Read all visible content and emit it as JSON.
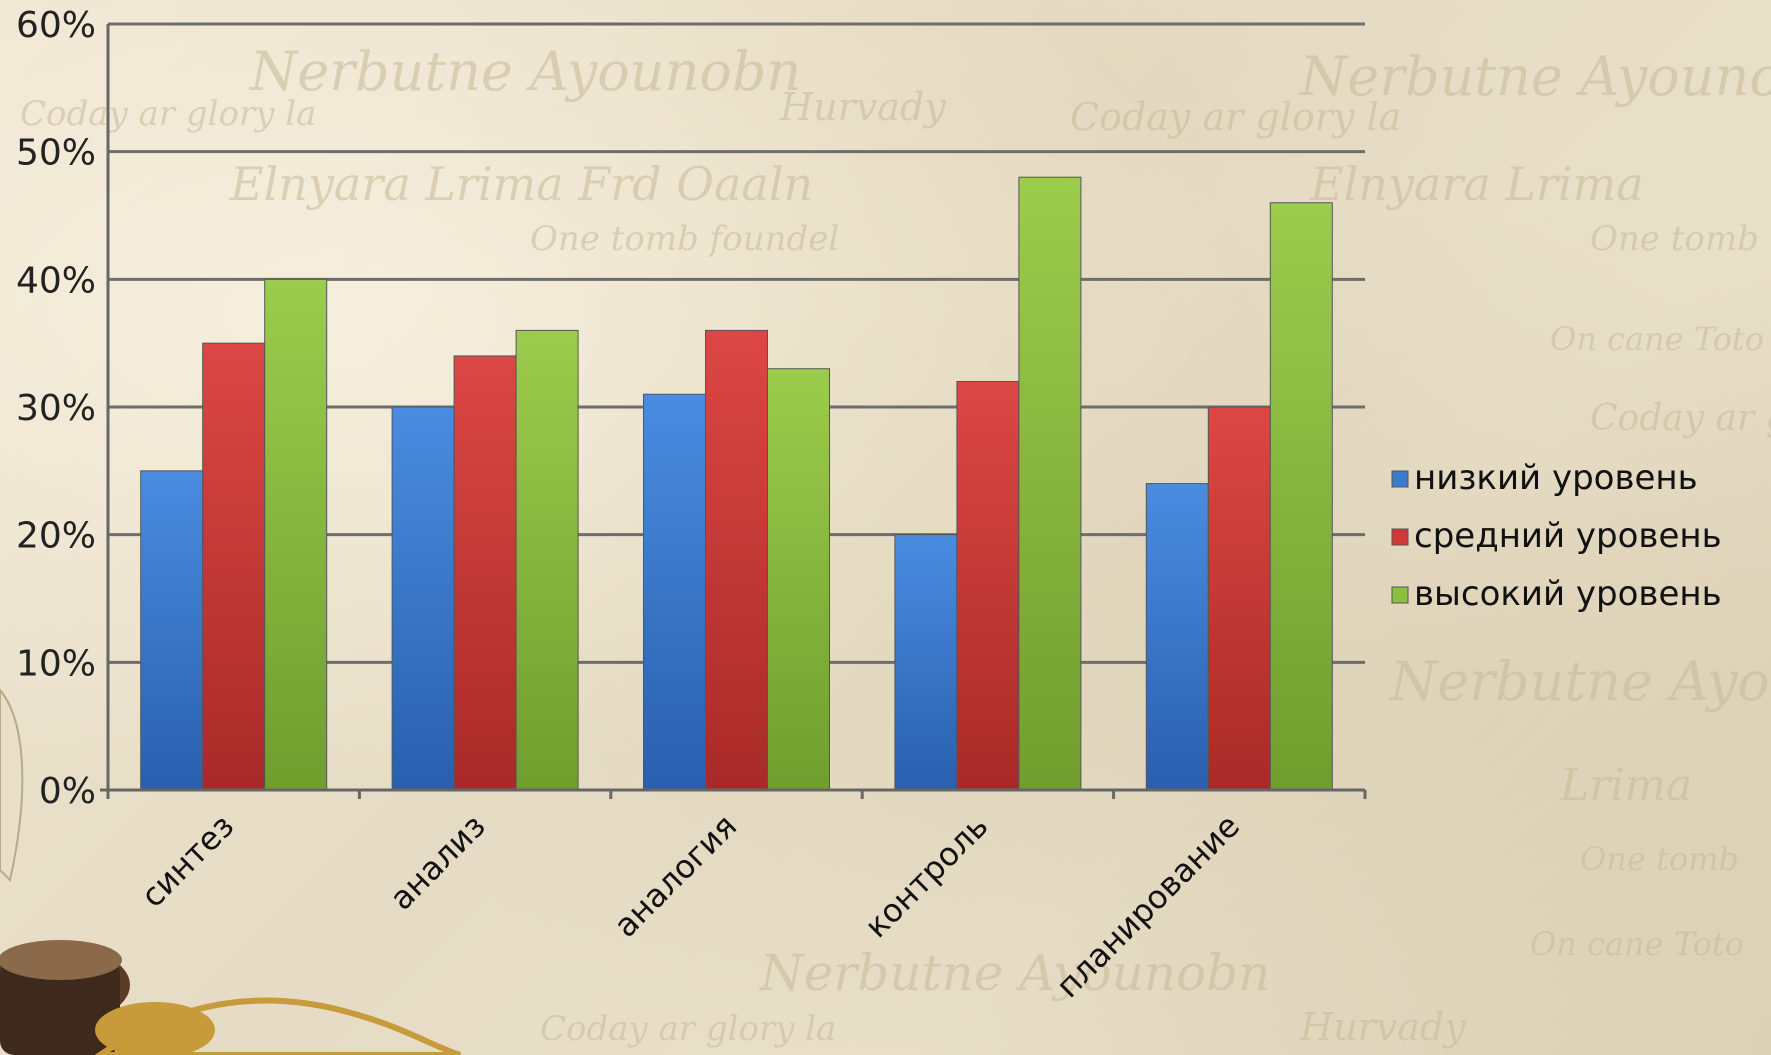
{
  "chart_data": {
    "type": "bar",
    "title": "",
    "xlabel": "",
    "ylabel": "",
    "categories": [
      "синтез",
      "анализ",
      "аналогия",
      "контроль",
      "планирование"
    ],
    "series": [
      {
        "name": "низкий уровень",
        "color": "#3a7bd0",
        "values": [
          25,
          30,
          31,
          20,
          24
        ]
      },
      {
        "name": "средний уровень",
        "color": "#cf3a37",
        "values": [
          35,
          34,
          36,
          32,
          30
        ]
      },
      {
        "name": "высокий уровень",
        "color": "#8cbf3f",
        "values": [
          40,
          36,
          33,
          48,
          46
        ]
      }
    ],
    "ylim": [
      0,
      60
    ],
    "yticks": [
      0,
      10,
      20,
      30,
      40,
      50,
      60
    ],
    "ytick_format": "%",
    "grid": true,
    "legend_position": "right"
  }
}
